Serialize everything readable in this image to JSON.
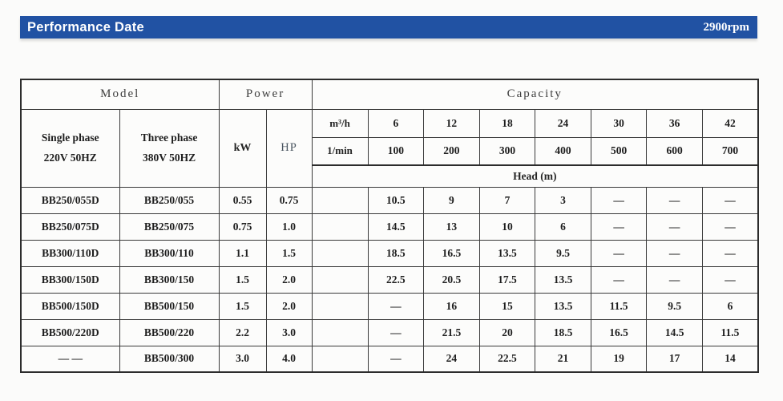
{
  "title_bar": {
    "title": "Performance Date",
    "rpm": "2900rpm",
    "color": "#2152a3"
  },
  "table": {
    "group_headers": {
      "model": "Model",
      "power": "Power",
      "capacity": "Capacity"
    },
    "column_headers": {
      "single_phase": "Single phase\n220V 50HZ",
      "three_phase": "Three phase\n380V 50HZ",
      "kw": "kW",
      "hp": "HP"
    },
    "capacity": {
      "flow_unit_m3h": "m³/h",
      "flow_m3h": [
        "6",
        "12",
        "18",
        "24",
        "30",
        "36",
        "42"
      ],
      "flow_unit_lmin": "1/min",
      "flow_lmin": [
        "100",
        "200",
        "300",
        "400",
        "500",
        "600",
        "700"
      ],
      "head_label": "Head (m)"
    },
    "rows": [
      {
        "single_phase": "BB250/055D",
        "three_phase": "BB250/055",
        "kw": "0.55",
        "hp": "0.75",
        "head": [
          "10.5",
          "9",
          "7",
          "3",
          "—",
          "—",
          "—"
        ]
      },
      {
        "single_phase": "BB250/075D",
        "three_phase": "BB250/075",
        "kw": "0.75",
        "hp": "1.0",
        "head": [
          "14.5",
          "13",
          "10",
          "6",
          "—",
          "—",
          "—"
        ]
      },
      {
        "single_phase": "BB300/110D",
        "three_phase": "BB300/110",
        "kw": "1.1",
        "hp": "1.5",
        "head": [
          "18.5",
          "16.5",
          "13.5",
          "9.5",
          "—",
          "—",
          "—"
        ]
      },
      {
        "single_phase": "BB300/150D",
        "three_phase": "BB300/150",
        "kw": "1.5",
        "hp": "2.0",
        "head": [
          "22.5",
          "20.5",
          "17.5",
          "13.5",
          "—",
          "—",
          "—"
        ]
      },
      {
        "single_phase": "BB500/150D",
        "three_phase": "BB500/150",
        "kw": "1.5",
        "hp": "2.0",
        "head": [
          "—",
          "16",
          "15",
          "13.5",
          "11.5",
          "9.5",
          "6"
        ]
      },
      {
        "single_phase": "BB500/220D",
        "three_phase": "BB500/220",
        "kw": "2.2",
        "hp": "3.0",
        "head": [
          "—",
          "21.5",
          "20",
          "18.5",
          "16.5",
          "14.5",
          "11.5"
        ]
      },
      {
        "single_phase": "— —",
        "three_phase": "BB500/300",
        "kw": "3.0",
        "hp": "4.0",
        "head": [
          "—",
          "24",
          "22.5",
          "21",
          "19",
          "17",
          "14"
        ]
      }
    ]
  }
}
